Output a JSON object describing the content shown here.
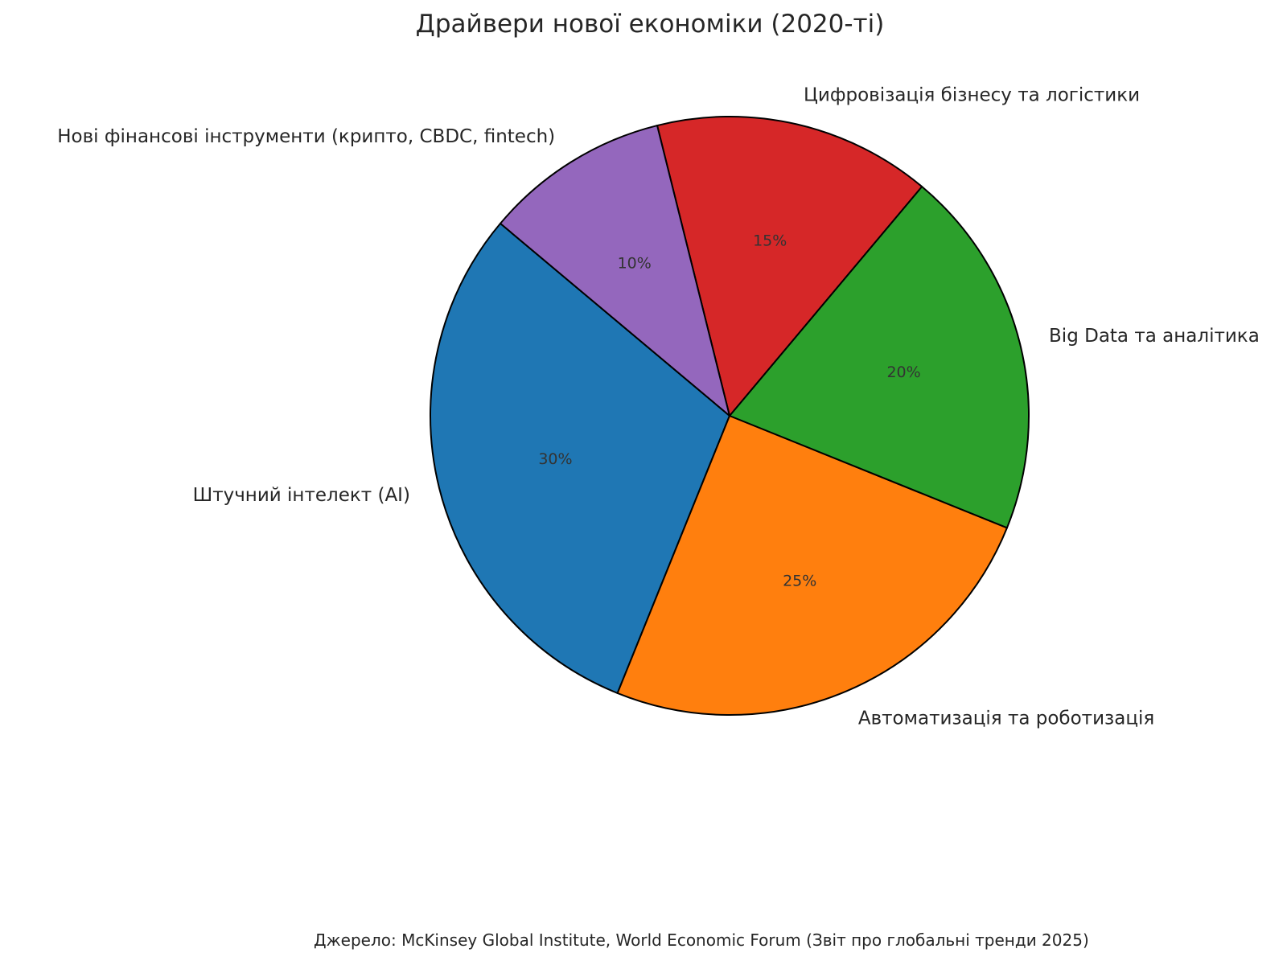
{
  "chart_data": {
    "type": "pie",
    "title": "Драйвери нової економіки (2020-ті)",
    "source": "Джерело: McKinsey Global Institute, World Economic Forum (Звіт про глобальні тренди 2025)",
    "start_angle_deg": 140,
    "direction": "counterclockwise",
    "legend": "none",
    "slices": [
      {
        "label": "Штучний інтелект (AI)",
        "value": 30,
        "pct_label": "30%",
        "color": "#1f77b4"
      },
      {
        "label": "Автоматизація та роботизація",
        "value": 25,
        "pct_label": "25%",
        "color": "#ff7f0e"
      },
      {
        "label": "Big Data та аналітика",
        "value": 20,
        "pct_label": "20%",
        "color": "#2ca02c"
      },
      {
        "label": "Цифровізація бізнесу та логістики",
        "value": 15,
        "pct_label": "15%",
        "color": "#d62728"
      },
      {
        "label": "Нові фінансові інструменти (крипто, CBDC, fintech)",
        "value": 10,
        "pct_label": "10%",
        "color": "#9467bd"
      }
    ]
  }
}
